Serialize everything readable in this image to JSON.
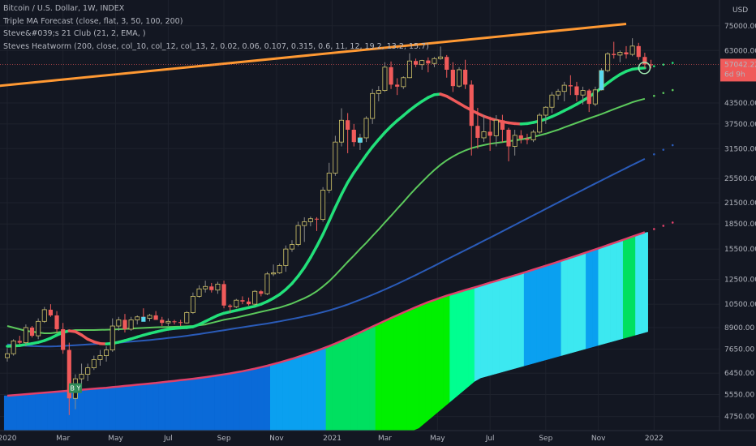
{
  "legend": {
    "symbol": "Bitcoin / U.S. Dollar, 1W, INDEX",
    "indicator1": "Triple MA Forecast (close, flat, 3, 50, 100, 200)",
    "indicator2": "Steve&#039;s 21 Club  (21, 2, EMA, )",
    "indicator3": "Steves Heatworm (200, close, col_10, col_12, col_13, 2, 0.02, 0.06, 0.107, 0.315, 0.6, 11, 12, 19.2, 13.2, 15.7)"
  },
  "currency": "USD",
  "price_badge": {
    "price": "57042.22",
    "countdown": "6d 9h"
  },
  "buy_label": "B Y",
  "chart_data": {
    "type": "line",
    "y_scale": "log",
    "ylim": [
      4300,
      90000
    ],
    "price_ticks": [
      {
        "value": 75000,
        "label": "75000.00"
      },
      {
        "value": 63000,
        "label": "63000.00"
      },
      {
        "value": 43500,
        "label": "43500.00"
      },
      {
        "value": 37500,
        "label": "37500.00"
      },
      {
        "value": 31500,
        "label": "31500.00"
      },
      {
        "value": 25500,
        "label": "25500.00"
      },
      {
        "value": 21500,
        "label": "21500.00"
      },
      {
        "value": 18500,
        "label": "18500.00"
      },
      {
        "value": 15500,
        "label": "15500.00"
      },
      {
        "value": 12500,
        "label": "12500.00"
      },
      {
        "value": 10500,
        "label": "10500.00"
      },
      {
        "value": 8900,
        "label": "8900.00"
      },
      {
        "value": 7650,
        "label": "7650.00"
      },
      {
        "value": 6450,
        "label": "6450.00"
      },
      {
        "value": 5550,
        "label": "5550.00"
      },
      {
        "value": 4750,
        "label": "4750.00"
      }
    ],
    "time_ticks": [
      {
        "t": 0,
        "label": "2020"
      },
      {
        "t": 9,
        "label": "Mar"
      },
      {
        "t": 17.5,
        "label": "May"
      },
      {
        "t": 26,
        "label": "Jul"
      },
      {
        "t": 35,
        "label": "Sep"
      },
      {
        "t": 43.5,
        "label": "Nov"
      },
      {
        "t": 52.5,
        "label": "2021"
      },
      {
        "t": 61,
        "label": "Mar"
      },
      {
        "t": 69.5,
        "label": "May"
      },
      {
        "t": 78,
        "label": "Jul"
      },
      {
        "t": 87,
        "label": "Sep"
      },
      {
        "t": 95.5,
        "label": "Nov"
      },
      {
        "t": 104.5,
        "label": "2022"
      }
    ],
    "colors": {
      "up": "#5ad9f0",
      "down": "#f05a5a",
      "up_wick": "#8a8a8a",
      "ema21_up": "#22e07a",
      "ema21_down": "#f05a5a",
      "ma50": "#5cc95c",
      "ma100": "#2a5bb8",
      "ma200": "#e0406a",
      "trend": "#ff9933"
    },
    "trendline": [
      {
        "t": 0,
        "y": 48000
      },
      {
        "t": 100,
        "y": 76000
      }
    ],
    "candles": [
      [
        7200,
        7700,
        7000,
        7400
      ],
      [
        7400,
        8200,
        7300,
        8100
      ],
      [
        8100,
        8400,
        7900,
        8000
      ],
      [
        8000,
        9100,
        7800,
        8900
      ],
      [
        8900,
        9000,
        8300,
        8400
      ],
      [
        8400,
        9500,
        8200,
        9300
      ],
      [
        9300,
        10300,
        9200,
        10100
      ],
      [
        10100,
        10500,
        9600,
        9700
      ],
      [
        9700,
        10000,
        8600,
        8800
      ],
      [
        8800,
        9200,
        7400,
        7600
      ],
      [
        7600,
        8000,
        4800,
        5400
      ],
      [
        5400,
        6400,
        5000,
        6200
      ],
      [
        6200,
        6900,
        5800,
        6400
      ],
      [
        6400,
        6900,
        6100,
        6700
      ],
      [
        6700,
        7300,
        6600,
        7100
      ],
      [
        7100,
        7600,
        6800,
        7300
      ],
      [
        7300,
        7800,
        7000,
        7600
      ],
      [
        7600,
        9500,
        7500,
        9000
      ],
      [
        9000,
        9600,
        8700,
        9400
      ],
      [
        9400,
        9800,
        8600,
        8800
      ],
      [
        8800,
        9600,
        8700,
        9400
      ],
      [
        9400,
        9700,
        9100,
        9600
      ],
      [
        9600,
        10200,
        9400,
        9500
      ],
      [
        9500,
        9800,
        9300,
        9700
      ],
      [
        9700,
        10000,
        9400,
        9400
      ],
      [
        9400,
        9600,
        9000,
        9200
      ],
      [
        9200,
        9500,
        9000,
        9300
      ],
      [
        9300,
        9400,
        9100,
        9250
      ],
      [
        9250,
        9400,
        9000,
        9200
      ],
      [
        9200,
        10000,
        9150,
        9900
      ],
      [
        9900,
        11400,
        9800,
        11100
      ],
      [
        11100,
        12000,
        11000,
        11700
      ],
      [
        11700,
        12400,
        11400,
        11900
      ],
      [
        11900,
        12200,
        11400,
        11600
      ],
      [
        11600,
        12300,
        11300,
        12100
      ],
      [
        12100,
        12400,
        10200,
        10400
      ],
      [
        10400,
        10500,
        9900,
        10300
      ],
      [
        10300,
        10900,
        10200,
        10800
      ],
      [
        10800,
        11100,
        10500,
        10700
      ],
      [
        10700,
        11000,
        10400,
        10500
      ],
      [
        10500,
        11600,
        10400,
        11500
      ],
      [
        11500,
        11600,
        11100,
        11300
      ],
      [
        11300,
        13200,
        11200,
        13000
      ],
      [
        13000,
        13900,
        12800,
        13100
      ],
      [
        13100,
        14000,
        13000,
        13800
      ],
      [
        13800,
        15900,
        13200,
        15500
      ],
      [
        15500,
        16500,
        15200,
        16000
      ],
      [
        16000,
        18800,
        15800,
        18300
      ],
      [
        18300,
        19400,
        16300,
        18800
      ],
      [
        18800,
        19500,
        18200,
        19200
      ],
      [
        19200,
        19400,
        17600,
        19100
      ],
      [
        19100,
        24000,
        18800,
        23500
      ],
      [
        23500,
        28500,
        23000,
        26500
      ],
      [
        26500,
        34500,
        26000,
        33000
      ],
      [
        33000,
        41900,
        32000,
        38500
      ],
      [
        38500,
        40500,
        30500,
        36000
      ],
      [
        36000,
        37500,
        32000,
        33000
      ],
      [
        33000,
        35000,
        31200,
        34000
      ],
      [
        34000,
        39600,
        33000,
        39000
      ],
      [
        39000,
        48000,
        37500,
        46500
      ],
      [
        46500,
        49000,
        44000,
        47500
      ],
      [
        47500,
        58000,
        47000,
        56000
      ],
      [
        56000,
        58300,
        48000,
        49500
      ],
      [
        49500,
        51800,
        46000,
        48800
      ],
      [
        48800,
        52500,
        48000,
        52000
      ],
      [
        52000,
        61800,
        51800,
        58500
      ],
      [
        58500,
        59500,
        56000,
        57000
      ],
      [
        57000,
        59000,
        55000,
        58700
      ],
      [
        58700,
        60000,
        54000,
        57500
      ],
      [
        57500,
        60200,
        56000,
        59500
      ],
      [
        59500,
        64800,
        59000,
        60200
      ],
      [
        60200,
        61000,
        52000,
        55000
      ],
      [
        55000,
        58000,
        47000,
        49000
      ],
      [
        49000,
        56000,
        48500,
        55000
      ],
      [
        55000,
        59000,
        48000,
        49500
      ],
      [
        49500,
        51000,
        30000,
        37000
      ],
      [
        37000,
        42000,
        31500,
        34000
      ],
      [
        34000,
        40000,
        33000,
        35500
      ],
      [
        35500,
        39500,
        31000,
        34500
      ],
      [
        34500,
        39900,
        32000,
        38500
      ],
      [
        38500,
        40000,
        33000,
        36000
      ],
      [
        36000,
        36500,
        28800,
        32000
      ],
      [
        32000,
        36000,
        30000,
        34600
      ],
      [
        34600,
        35900,
        32700,
        33800
      ],
      [
        33800,
        35000,
        32500,
        33500
      ],
      [
        33500,
        36000,
        33000,
        35400
      ],
      [
        35400,
        40500,
        35000,
        39900
      ],
      [
        39900,
        42500,
        37500,
        42200
      ],
      [
        42200,
        47000,
        40500,
        46000
      ],
      [
        46000,
        48000,
        44500,
        47200
      ],
      [
        47200,
        50500,
        44000,
        49300
      ],
      [
        49300,
        52900,
        46000,
        48900
      ],
      [
        48900,
        50500,
        44000,
        46000
      ],
      [
        46000,
        48800,
        43000,
        47500
      ],
      [
        47500,
        48000,
        40800,
        43200
      ],
      [
        43200,
        48800,
        42500,
        47700
      ],
      [
        47700,
        55600,
        47500,
        54700
      ],
      [
        54700,
        62300,
        54000,
        61500
      ],
      [
        61500,
        67000,
        59500,
        61000
      ],
      [
        61000,
        63000,
        58000,
        62200
      ],
      [
        62200,
        65000,
        59500,
        61300
      ],
      [
        61300,
        68700,
        60500,
        65000
      ],
      [
        65000,
        66500,
        59000,
        60200
      ],
      [
        60200,
        62000,
        55600,
        57100
      ],
      [
        57100,
        59000,
        55500,
        57042
      ]
    ],
    "buy_bar": 11,
    "ema21": [
      7800,
      7820,
      7840,
      7900,
      7950,
      8020,
      8120,
      8260,
      8440,
      8600,
      8700,
      8650,
      8450,
      8200,
      8050,
      7950,
      7930,
      7960,
      8030,
      8120,
      8220,
      8330,
      8440,
      8540,
      8630,
      8720,
      8800,
      8850,
      8880,
      8900,
      8950,
      9100,
      9300,
      9500,
      9700,
      9850,
      9950,
      10050,
      10150,
      10250,
      10350,
      10500,
      10700,
      10950,
      11250,
      11650,
      12150,
      12800,
      13600,
      14600,
      15800,
      17200,
      18900,
      20800,
      22800,
      24800,
      26600,
      28300,
      30100,
      31900,
      33600,
      35300,
      36900,
      38400,
      39800,
      41300,
      42700,
      44000,
      45200,
      46100,
      46300,
      45600,
      44500,
      43400,
      42300,
      41300,
      40400,
      39600,
      39000,
      38500,
      38100,
      37800,
      37600,
      37500,
      37600,
      37900,
      38300,
      38800,
      39500,
      40300,
      41200,
      42100,
      43100,
      44200,
      45400,
      46800,
      48400,
      50100,
      51700,
      53200,
      54400,
      55200,
      55500,
      55700
    ],
    "ma50": [
      9000,
      8900,
      8800,
      8700,
      8650,
      8600,
      8550,
      8550,
      8600,
      8650,
      8700,
      8750,
      8750,
      8750,
      8750,
      8760,
      8770,
      8780,
      8800,
      8820,
      8840,
      8860,
      8880,
      8900,
      8920,
      8930,
      8940,
      8950,
      8960,
      8980,
      9000,
      9050,
      9100,
      9200,
      9300,
      9400,
      9480,
      9550,
      9650,
      9750,
      9850,
      9950,
      10050,
      10150,
      10250,
      10400,
      10550,
      10750,
      10950,
      11200,
      11500,
      11900,
      12350,
      12900,
      13500,
      14150,
      14800,
      15500,
      16200,
      17000,
      17800,
      18700,
      19600,
      20600,
      21600,
      22700,
      23800,
      24900,
      26000,
      27100,
      28100,
      29000,
      29800,
      30500,
      31100,
      31600,
      32000,
      32300,
      32600,
      32800,
      33000,
      33200,
      33400,
      33600,
      33900,
      34200,
      34600,
      35000,
      35500,
      36000,
      36600,
      37200,
      37800,
      38400,
      39000,
      39600,
      40200,
      40900,
      41600,
      42300,
      43000,
      43700,
      44300,
      44800
    ],
    "ma100": [
      7900,
      7880,
      7850,
      7830,
      7810,
      7800,
      7790,
      7790,
      7800,
      7820,
      7840,
      7860,
      7880,
      7900,
      7920,
      7940,
      7960,
      7980,
      8000,
      8030,
      8060,
      8090,
      8120,
      8150,
      8190,
      8230,
      8270,
      8310,
      8350,
      8400,
      8450,
      8500,
      8560,
      8620,
      8680,
      8740,
      8800,
      8860,
      8920,
      8980,
      9040,
      9100,
      9160,
      9230,
      9300,
      9380,
      9460,
      9540,
      9630,
      9720,
      9820,
      9930,
      10050,
      10180,
      10320,
      10480,
      10650,
      10830,
      11020,
      11220,
      11430,
      11650,
      11880,
      12120,
      12370,
      12630,
      12900,
      13180,
      13470,
      13770,
      14080,
      14400,
      14720,
      15050,
      15380,
      15720,
      16070,
      16430,
      16800,
      17180,
      17570,
      17970,
      18380,
      18800,
      19230,
      19670,
      20120,
      20580,
      21050,
      21530,
      22020,
      22520,
      23030,
      23550,
      24080,
      24620,
      25170,
      25730,
      26300,
      26880,
      27470,
      28070,
      28680,
      29300
    ],
    "ma200": [
      5500,
      5520,
      5540,
      5560,
      5580,
      5600,
      5620,
      5640,
      5660,
      5680,
      5700,
      5720,
      5740,
      5760,
      5780,
      5800,
      5820,
      5845,
      5870,
      5895,
      5920,
      5945,
      5970,
      5995,
      6020,
      6050,
      6080,
      6110,
      6140,
      6170,
      6200,
      6235,
      6270,
      6310,
      6350,
      6395,
      6440,
      6490,
      6540,
      6600,
      6660,
      6730,
      6800,
      6880,
      6960,
      7050,
      7140,
      7240,
      7340,
      7450,
      7560,
      7680,
      7810,
      7950,
      8100,
      8260,
      8430,
      8600,
      8780,
      8960,
      9140,
      9330,
      9520,
      9710,
      9900,
      10090,
      10280,
      10470,
      10650,
      10820,
      10990,
      11150,
      11300,
      11450,
      11600,
      11750,
      11900,
      12060,
      12220,
      12380,
      12540,
      12700,
      12870,
      13040,
      13220,
      13400,
      13590,
      13780,
      13970,
      14170,
      14370,
      14580,
      14790,
      15010,
      15230,
      15460,
      15690,
      15930,
      16170,
      16420,
      16670,
      16930,
      17190,
      17450
    ],
    "band_lower_anchor": [
      {
        "t": 0,
        "y": 4300
      },
      {
        "t": 66,
        "y": 4300
      },
      {
        "t": 76,
        "y": 6200
      },
      {
        "t": 104,
        "y": 8700
      }
    ],
    "heat_colors": [
      "#0a6ad8",
      "#0aa0f0",
      "#3ce8f0",
      "#00e060",
      "#00f000",
      "#00ff90"
    ]
  }
}
